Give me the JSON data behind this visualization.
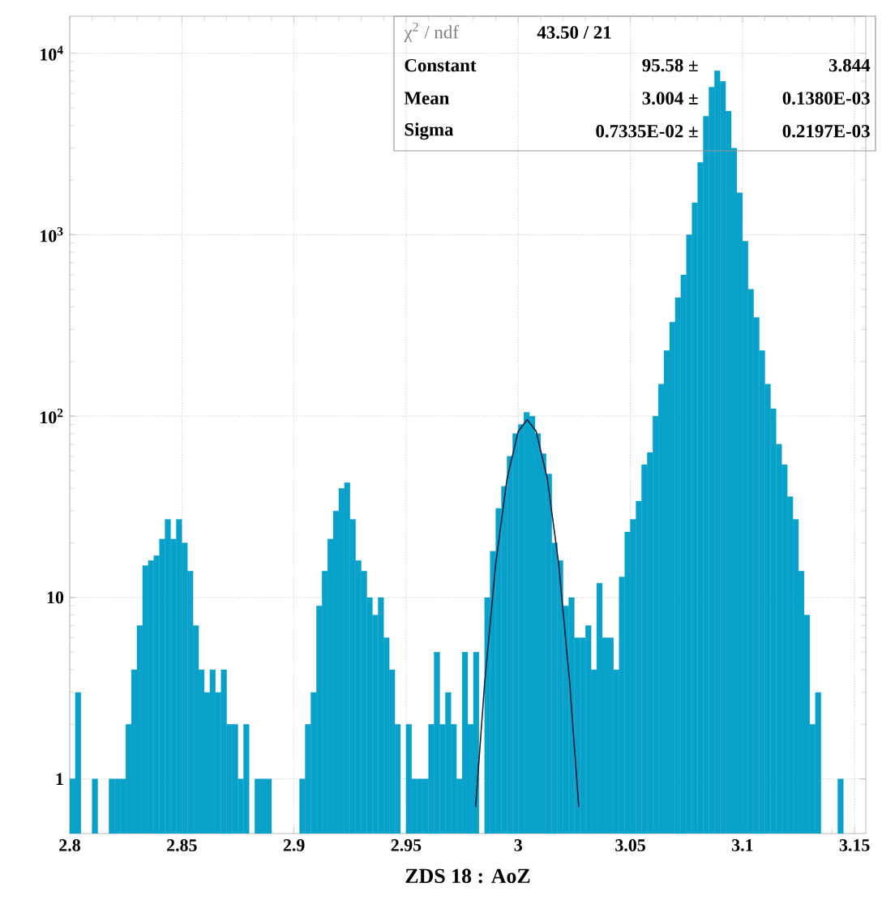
{
  "chart_data": {
    "type": "histogram",
    "xlabel": "ZDS 18 : AoZ",
    "xlim": [
      2.8,
      3.155
    ],
    "ylim": [
      0.5,
      16000
    ],
    "log": "y",
    "grid": true,
    "xticks": [
      2.8,
      2.85,
      2.9,
      2.95,
      3,
      3.05,
      3.1,
      3.15
    ],
    "yticks": [
      1,
      10,
      {
        "value": 100,
        "label": "10$^{2}$"
      },
      {
        "value": 1000,
        "label": "10$^{3}$"
      },
      {
        "value": 10000,
        "label": "10$^{4}$"
      }
    ],
    "annotations": [
      "χ$^{2}$ / ndf",
      "43.50   /   21",
      "Constant",
      "95.58 ±",
      "3.844",
      "Mean",
      "3.004 ±",
      "0.1380E-03",
      "Sigma",
      "0.7335E-02 ±",
      "0.2197E-03"
    ],
    "series": [
      {
        "color": "#07a1c9",
        "bins": [
          2.8,
          2.8025,
          2.805,
          2.8075,
          2.81,
          2.8125,
          2.815,
          2.8175,
          2.82,
          2.8225,
          2.825,
          2.8275,
          2.83,
          2.8325,
          2.835,
          2.8375,
          2.84,
          2.8425,
          2.845,
          2.8475,
          2.85,
          2.8525,
          2.855,
          2.8575,
          2.86,
          2.8625,
          2.865,
          2.8675,
          2.87,
          2.8725,
          2.875,
          2.8775,
          2.88,
          2.8825,
          2.885,
          2.8875,
          2.89,
          2.8925,
          2.895,
          2.8975,
          2.9,
          2.9025,
          2.905,
          2.9075,
          2.91,
          2.9125,
          2.915,
          2.9175,
          2.92,
          2.9225,
          2.925,
          2.9275,
          2.93,
          2.9325,
          2.935,
          2.9375,
          2.94,
          2.9425,
          2.945,
          2.9475,
          2.95,
          2.9525,
          2.955,
          2.9575,
          2.96,
          2.9625,
          2.965,
          2.9675,
          2.97,
          2.9725,
          2.975,
          2.9775,
          2.98,
          2.9825,
          2.985,
          2.9875,
          2.99,
          2.9925,
          2.995,
          2.9975,
          3,
          3.0025,
          3.005,
          3.0075,
          3.01,
          3.0125,
          3.015,
          3.0175,
          3.02,
          3.0225,
          3.025,
          3.0275,
          3.03,
          3.0325,
          3.035,
          3.0375,
          3.04,
          3.0425,
          3.045,
          3.0475,
          3.05,
          3.0525,
          3.055,
          3.0575,
          3.06,
          3.0625,
          3.065,
          3.0675,
          3.07,
          3.0725,
          3.075,
          3.0775,
          3.08,
          3.0825,
          3.085,
          3.0875,
          3.09,
          3.0925,
          3.095,
          3.0975,
          3.1,
          3.1025,
          3.105,
          3.1075,
          3.11,
          3.1125,
          3.115,
          3.1175,
          3.12,
          3.1225,
          3.125,
          3.1275,
          3.13,
          3.1325,
          3.135,
          3.1375,
          3.14,
          3.1425,
          3.145,
          3.1475,
          3.15,
          3.1525,
          3.155
        ],
        "values": [
          1,
          3,
          null,
          null,
          1,
          null,
          null,
          1,
          1,
          1,
          2,
          4,
          7,
          15,
          16,
          17,
          21,
          27,
          21,
          27,
          20,
          14,
          7,
          4,
          3,
          4,
          3,
          4,
          2,
          2,
          1,
          2,
          null,
          1,
          1,
          1,
          null,
          null,
          null,
          null,
          null,
          1,
          2,
          3,
          9,
          14,
          21,
          30,
          40,
          43,
          27,
          16,
          14,
          10,
          8,
          10,
          6,
          4,
          2,
          null,
          2,
          1,
          1,
          1,
          2,
          5,
          2,
          3,
          2,
          1,
          5,
          2,
          5,
          null,
          10,
          18,
          31,
          41,
          60,
          80,
          90,
          105,
          100,
          80,
          62,
          48,
          20,
          16,
          9,
          10,
          6,
          6,
          7,
          4,
          12,
          6,
          6,
          4,
          13,
          23,
          27,
          34,
          54,
          63,
          100,
          150,
          230,
          330,
          450,
          600,
          1000,
          1500,
          2500,
          4500,
          6500,
          8000,
          7000,
          4800,
          3000,
          1700,
          920,
          500,
          350,
          230,
          150,
          110,
          70,
          54,
          36,
          27,
          14,
          8,
          2,
          3,
          null,
          null,
          null,
          1,
          null,
          null,
          null,
          null
        ]
      },
      {
        "type": "line",
        "color": "#1c1c3c",
        "x": [
          2.981,
          2.985,
          2.99,
          2.995,
          3.0,
          3.004,
          3.008,
          3.013,
          3.018,
          3.023,
          3.027
        ],
        "values": [
          0.7,
          3.34,
          15.5,
          45.0,
          82.4,
          95.58,
          82.4,
          45.0,
          15.5,
          3.34,
          0.7
        ]
      }
    ]
  }
}
